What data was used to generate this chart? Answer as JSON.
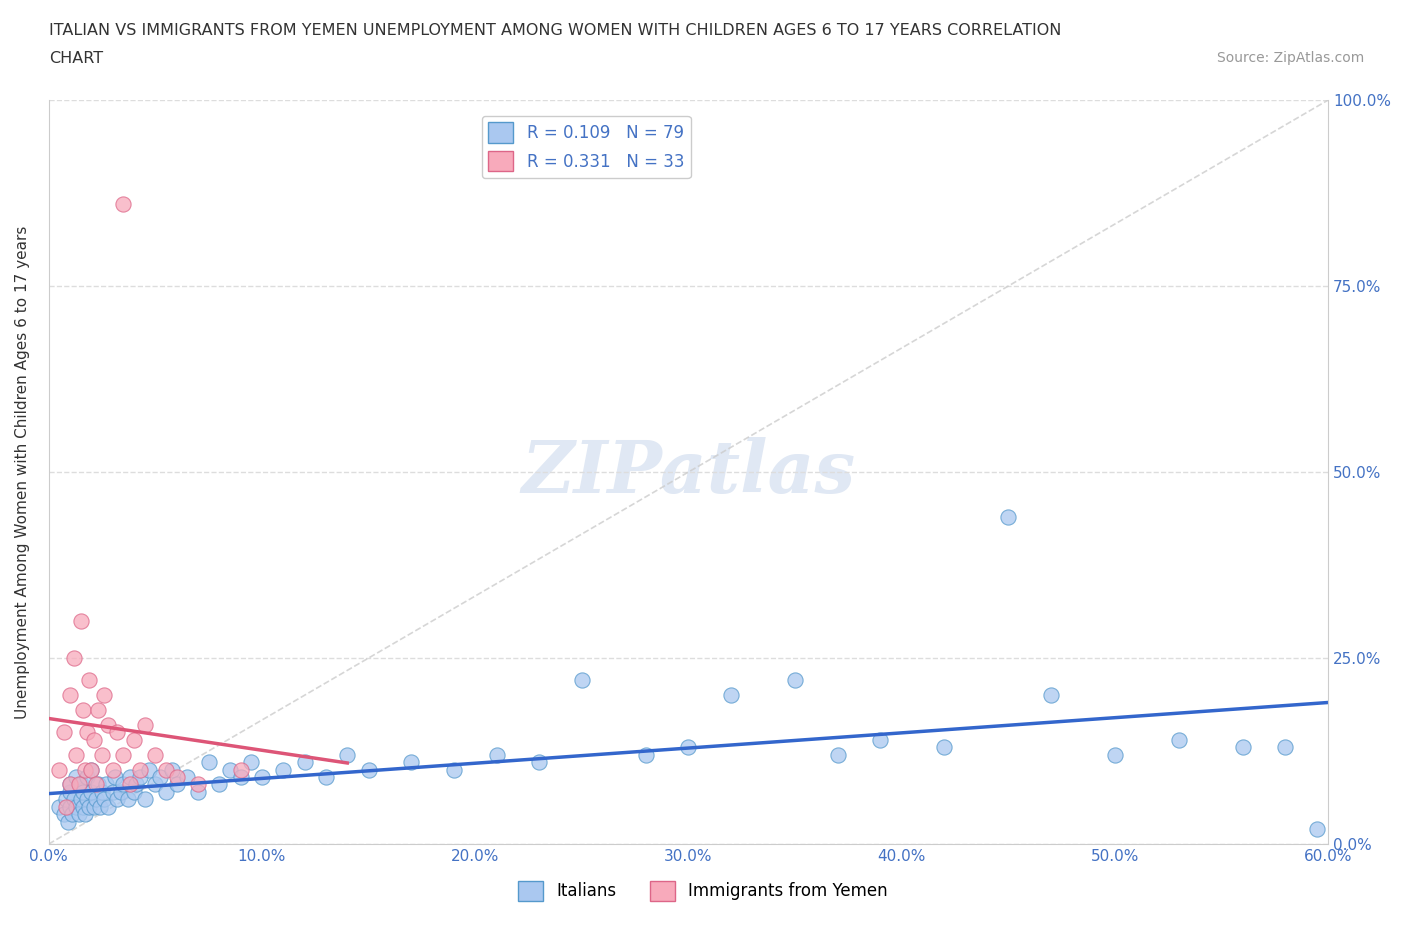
{
  "title_line1": "ITALIAN VS IMMIGRANTS FROM YEMEN UNEMPLOYMENT AMONG WOMEN WITH CHILDREN AGES 6 TO 17 YEARS CORRELATION",
  "title_line2": "CHART",
  "source_text": "Source: ZipAtlas.com",
  "ylabel": "Unemployment Among Women with Children Ages 6 to 17 years",
  "xlim": [
    0.0,
    0.6
  ],
  "ylim": [
    0.0,
    1.0
  ],
  "xtick_values": [
    0.0,
    0.1,
    0.2,
    0.3,
    0.4,
    0.5,
    0.6
  ],
  "ytick_labels": [
    "0.0%",
    "25.0%",
    "50.0%",
    "75.0%",
    "100.0%"
  ],
  "ytick_values": [
    0.0,
    0.25,
    0.5,
    0.75,
    1.0
  ],
  "italian_R": 0.109,
  "italian_N": 79,
  "yemen_R": 0.331,
  "yemen_N": 33,
  "italian_color": "#aac8f0",
  "italian_edge": "#5599cc",
  "yemen_color": "#f8aabb",
  "yemen_edge": "#dd6688",
  "italian_line_color": "#3366cc",
  "yemen_line_color": "#dd5577",
  "watermark": "ZIPatlas",
  "legend_italian_label": "Italians",
  "legend_yemen_label": "Immigrants from Yemen",
  "italian_x": [
    0.005,
    0.007,
    0.008,
    0.009,
    0.01,
    0.01,
    0.01,
    0.011,
    0.012,
    0.013,
    0.013,
    0.014,
    0.015,
    0.015,
    0.016,
    0.016,
    0.017,
    0.018,
    0.018,
    0.019,
    0.02,
    0.02,
    0.021,
    0.022,
    0.023,
    0.024,
    0.025,
    0.026,
    0.027,
    0.028,
    0.03,
    0.031,
    0.032,
    0.034,
    0.035,
    0.037,
    0.038,
    0.04,
    0.041,
    0.043,
    0.045,
    0.047,
    0.05,
    0.052,
    0.055,
    0.058,
    0.06,
    0.065,
    0.07,
    0.075,
    0.08,
    0.085,
    0.09,
    0.095,
    0.1,
    0.11,
    0.12,
    0.13,
    0.14,
    0.15,
    0.17,
    0.19,
    0.21,
    0.23,
    0.25,
    0.28,
    0.3,
    0.32,
    0.35,
    0.37,
    0.39,
    0.42,
    0.45,
    0.47,
    0.5,
    0.53,
    0.56,
    0.58,
    0.595
  ],
  "italian_y": [
    0.05,
    0.04,
    0.06,
    0.03,
    0.07,
    0.05,
    0.08,
    0.04,
    0.06,
    0.05,
    0.09,
    0.04,
    0.06,
    0.08,
    0.05,
    0.07,
    0.04,
    0.06,
    0.09,
    0.05,
    0.07,
    0.1,
    0.05,
    0.06,
    0.08,
    0.05,
    0.07,
    0.06,
    0.08,
    0.05,
    0.07,
    0.09,
    0.06,
    0.07,
    0.08,
    0.06,
    0.09,
    0.07,
    0.08,
    0.09,
    0.06,
    0.1,
    0.08,
    0.09,
    0.07,
    0.1,
    0.08,
    0.09,
    0.07,
    0.11,
    0.08,
    0.1,
    0.09,
    0.11,
    0.09,
    0.1,
    0.11,
    0.09,
    0.12,
    0.1,
    0.11,
    0.1,
    0.12,
    0.11,
    0.22,
    0.12,
    0.13,
    0.2,
    0.22,
    0.12,
    0.14,
    0.13,
    0.44,
    0.2,
    0.12,
    0.14,
    0.13,
    0.13,
    0.02
  ],
  "yemen_x": [
    0.005,
    0.007,
    0.008,
    0.01,
    0.01,
    0.012,
    0.013,
    0.014,
    0.015,
    0.016,
    0.017,
    0.018,
    0.019,
    0.02,
    0.021,
    0.022,
    0.023,
    0.025,
    0.026,
    0.028,
    0.03,
    0.032,
    0.035,
    0.038,
    0.04,
    0.043,
    0.045,
    0.05,
    0.055,
    0.06,
    0.07,
    0.09,
    0.035
  ],
  "yemen_y": [
    0.1,
    0.15,
    0.05,
    0.2,
    0.08,
    0.25,
    0.12,
    0.08,
    0.3,
    0.18,
    0.1,
    0.15,
    0.22,
    0.1,
    0.14,
    0.08,
    0.18,
    0.12,
    0.2,
    0.16,
    0.1,
    0.15,
    0.12,
    0.08,
    0.14,
    0.1,
    0.16,
    0.12,
    0.1,
    0.09,
    0.08,
    0.1,
    0.86
  ]
}
